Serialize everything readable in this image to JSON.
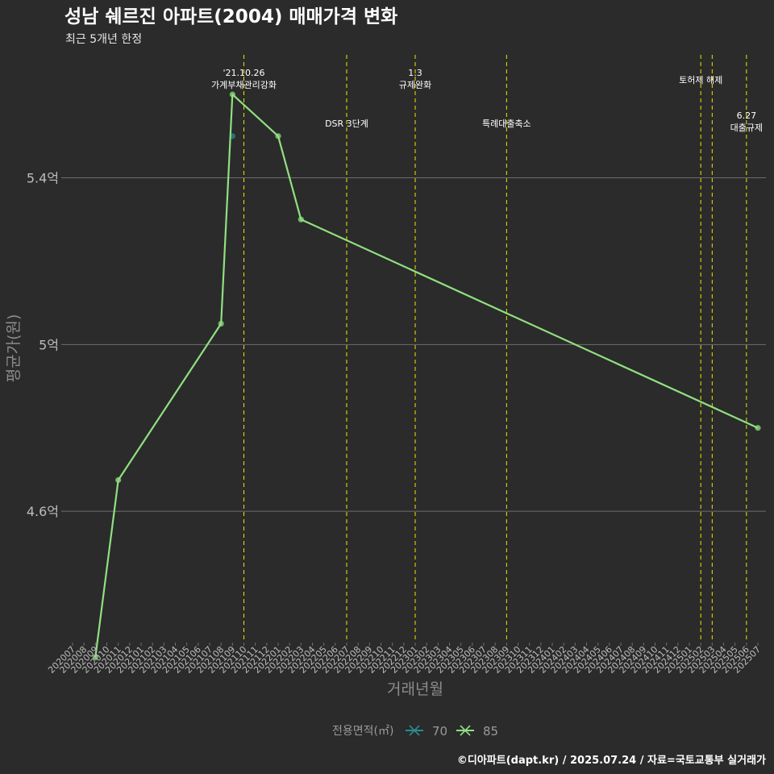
{
  "chart_data": {
    "type": "line",
    "title": "성남 쉐르진 아파트(2004) 매매가격 변화",
    "subtitle": "최근 5개년 한정",
    "xlabel": "거래년월",
    "ylabel": "평균가(원)",
    "caption": "©디아파트(dapt.kr) / 2025.07.24 / 자료=국토교통부 실거래가",
    "legend_title": "전용면적(㎡)",
    "categories": [
      "202007",
      "202008",
      "202009",
      "202010",
      "202011",
      "202012",
      "202101",
      "202102",
      "202103",
      "202104",
      "202105",
      "202106",
      "202107",
      "202108",
      "202109",
      "202110",
      "202111",
      "202112",
      "202201",
      "202202",
      "202203",
      "202204",
      "202205",
      "202206",
      "202207",
      "202208",
      "202209",
      "202210",
      "202211",
      "202212",
      "202301",
      "202302",
      "202303",
      "202304",
      "202305",
      "202306",
      "202307",
      "202308",
      "202309",
      "202310",
      "202311",
      "202312",
      "202401",
      "202402",
      "202403",
      "202404",
      "202405",
      "202406",
      "202407",
      "202408",
      "202409",
      "202410",
      "202411",
      "202412",
      "202501",
      "202502",
      "202503",
      "202504",
      "202505",
      "202506",
      "202507"
    ],
    "y_ticks": [
      {
        "value": 46000,
        "label": "4.6억"
      },
      {
        "value": 50000,
        "label": "5억"
      },
      {
        "value": 54000,
        "label": "5.4억"
      }
    ],
    "ylim": [
      42850,
      56950
    ],
    "series": [
      {
        "name": "70",
        "color": "#2a8d8d",
        "points": [
          {
            "x": "202109",
            "y": 55000
          }
        ]
      },
      {
        "name": "85",
        "color": "#90e080",
        "points": [
          {
            "x": "202009",
            "y": 42500
          },
          {
            "x": "202011",
            "y": 46750
          },
          {
            "x": "202108",
            "y": 50500
          },
          {
            "x": "202109",
            "y": 56000
          },
          {
            "x": "202201",
            "y": 55000
          },
          {
            "x": "202203",
            "y": 53000
          },
          {
            "x": "202507",
            "y": 48000
          }
        ]
      }
    ],
    "events": [
      {
        "x": "202110",
        "label_lines": [
          "'21.10.26",
          "가계부채관리강화"
        ],
        "row": "top"
      },
      {
        "x": "202207",
        "label_lines": [
          "DSR 3단계"
        ],
        "row": "low"
      },
      {
        "x": "202301",
        "label_lines": [
          "1.3",
          "규제완화"
        ],
        "row": "top"
      },
      {
        "x": "202309",
        "label_lines": [
          "특례대출축소"
        ],
        "row": "low"
      },
      {
        "x": "202502",
        "label_lines": [
          "토허제 해제"
        ],
        "row": "mid"
      },
      {
        "x": "202503",
        "label_lines": [],
        "row": "none"
      },
      {
        "x": "202506",
        "label_lines": [
          "6.27",
          "대출규제"
        ],
        "row": "low2"
      }
    ],
    "colors": {
      "background": "#2b2b2b",
      "grid": "#6e6e6e",
      "event_line": "#e8e800",
      "title": "#ffffff",
      "axis_text": "#bdbdbd",
      "axis_title": "#8c8c8c"
    }
  }
}
